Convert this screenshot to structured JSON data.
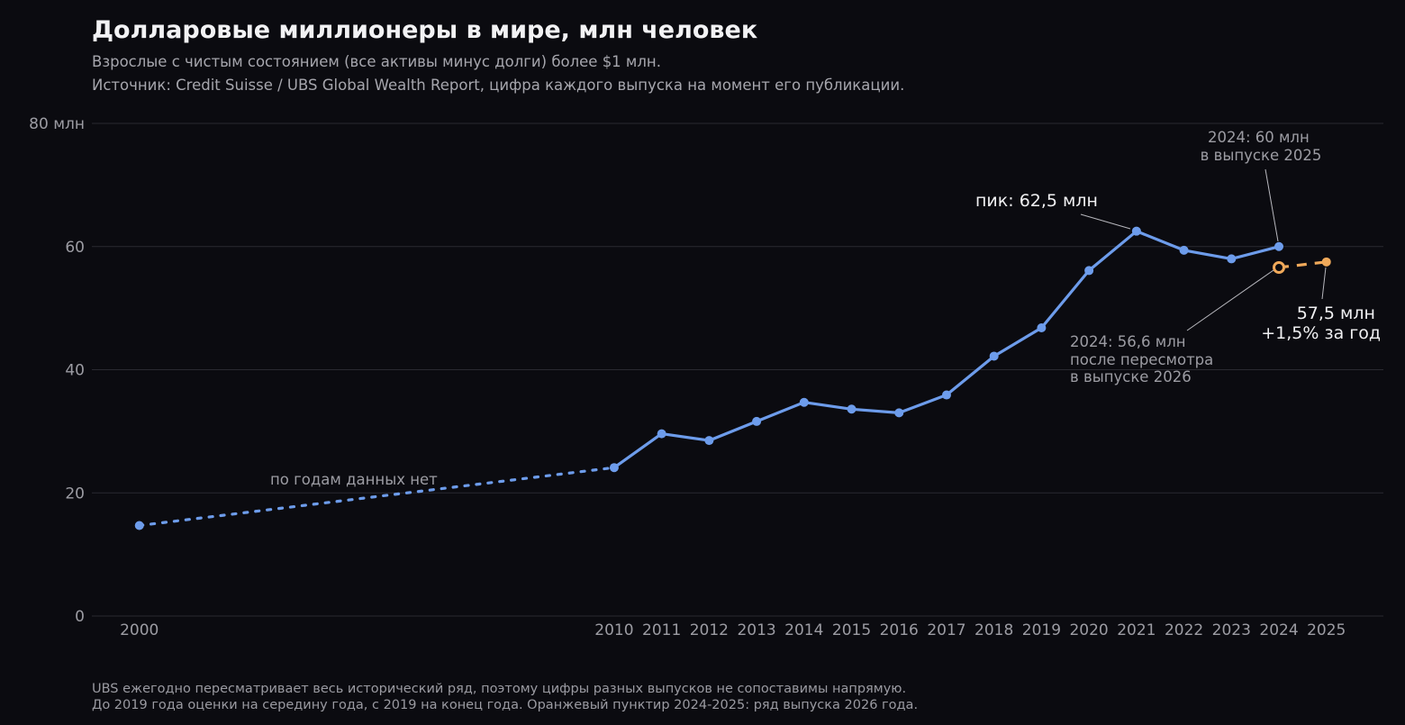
{
  "title": "Долларовые миллионеры в мире, млн человек",
  "subtitle": "Взрослые с чистым состоянием (все активы минус долги) более $1 млн.",
  "source": "Источник: Credit Suisse / UBS Global Wealth Report, цифра каждого выпуска на момент его публикации.",
  "footnote": {
    "line1": "UBS ежегодно пересматривает весь исторический ряд, поэтому цифры разных выпусков не сопоставимы напрямую.",
    "line2": "До 2019 года оценки на середину года, с 2019 на конец года. Оранжевый пунктир 2024-2025: ряд выпуска 2026 года."
  },
  "colors": {
    "background": "#0b0b10",
    "main_series": "#6d9ceb",
    "revised_series": "#f0a95a",
    "grid": "#2a2a31"
  },
  "chart_data": {
    "type": "line",
    "x_ticks": [
      "2000",
      "2010",
      "2011",
      "2012",
      "2013",
      "2014",
      "2015",
      "2016",
      "2017",
      "2018",
      "2019",
      "2020",
      "2021",
      "2022",
      "2023",
      "2024",
      "2025"
    ],
    "y_ticks": [
      "0",
      "20",
      "40",
      "60",
      "80 млн"
    ],
    "y_tick_values": [
      0,
      20,
      40,
      60,
      80
    ],
    "xlim": [
      1999,
      2026.2
    ],
    "ylim": [
      0,
      80
    ],
    "grid": "horizontal",
    "series": [
      {
        "style": "dotted",
        "color": "#6d9ceb",
        "x": [
          2000,
          2010
        ],
        "y": [
          14.7,
          24.1
        ]
      },
      {
        "style": "solid",
        "color": "#6d9ceb",
        "x": [
          2010,
          2011,
          2012,
          2013,
          2014,
          2015,
          2016,
          2017,
          2018,
          2019,
          2020,
          2021,
          2022,
          2023,
          2024
        ],
        "y": [
          24.1,
          29.6,
          28.5,
          31.6,
          34.7,
          33.6,
          33.0,
          35.9,
          42.2,
          46.8,
          56.1,
          62.5,
          59.4,
          58.0,
          60.0
        ]
      },
      {
        "style": "dashed",
        "color": "#f0a95a",
        "x": [
          2024,
          2025
        ],
        "y": [
          56.6,
          57.5
        ],
        "hollow_first": true
      }
    ],
    "annotations": {
      "gap": "по годам данных нет",
      "peak": "пик: 62,5 млн",
      "report2025": [
        "2024: 60 млн",
        "в выпуске 2025"
      ],
      "revised": [
        "2024: 56,6 млн",
        "после пересмотра",
        "в выпуске 2026"
      ],
      "latest": [
        "57,5 млн",
        "+1,5% за год"
      ]
    }
  }
}
